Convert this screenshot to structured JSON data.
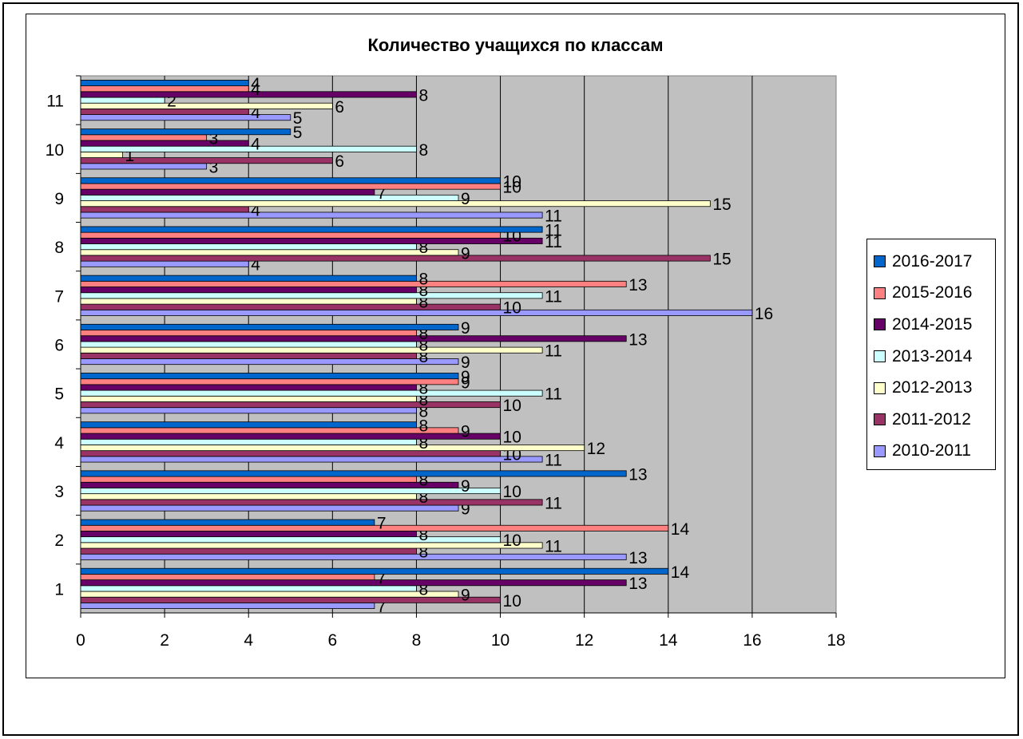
{
  "chart_data": {
    "type": "bar",
    "orientation": "horizontal",
    "title": "Количество учащихся  по классам",
    "categories": [
      "1",
      "2",
      "3",
      "4",
      "5",
      "6",
      "7",
      "8",
      "9",
      "10",
      "11"
    ],
    "xlim": [
      0,
      18
    ],
    "x_ticks": [
      "0",
      "2",
      "4",
      "6",
      "8",
      "10",
      "12",
      "14",
      "16",
      "18"
    ],
    "grid": true,
    "legend_position": "right",
    "series": [
      {
        "name": "2010-2011",
        "color": "#9999ff",
        "values": [
          7,
          13,
          9,
          11,
          8,
          9,
          16,
          4,
          11,
          3,
          5
        ]
      },
      {
        "name": "2011-2012",
        "color": "#993366",
        "values": [
          10,
          8,
          11,
          10,
          10,
          8,
          10,
          15,
          4,
          6,
          4
        ]
      },
      {
        "name": "2012-2013",
        "color": "#ffffcc",
        "values": [
          9,
          11,
          8,
          12,
          8,
          11,
          8,
          9,
          15,
          1,
          6
        ]
      },
      {
        "name": "2013-2014",
        "color": "#ccffff",
        "values": [
          8,
          10,
          10,
          8,
          11,
          8,
          11,
          8,
          9,
          8,
          2
        ]
      },
      {
        "name": "2014-2015",
        "color": "#660066",
        "values": [
          13,
          8,
          9,
          10,
          8,
          13,
          8,
          11,
          7,
          4,
          8
        ]
      },
      {
        "name": "2015-2016",
        "color": "#ff8080",
        "values": [
          7,
          14,
          8,
          9,
          9,
          8,
          13,
          10,
          10,
          3,
          4
        ]
      },
      {
        "name": "2016-2017",
        "color": "#0066cc",
        "values": [
          14,
          7,
          13,
          8,
          9,
          9,
          8,
          11,
          10,
          5,
          4
        ]
      }
    ]
  }
}
